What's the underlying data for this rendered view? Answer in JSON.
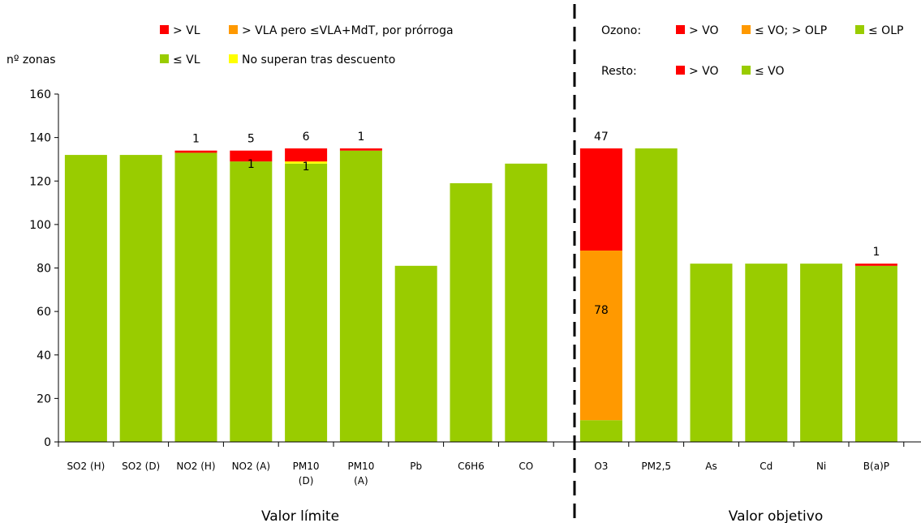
{
  "chart_data": {
    "type": "bar",
    "stacked": true,
    "ylabel": "nº zonas",
    "ylim": [
      0,
      160
    ],
    "yticks": [
      0,
      20,
      40,
      60,
      80,
      100,
      120,
      140,
      160
    ],
    "grid": false,
    "colors": {
      "red": "#ff0000",
      "orange": "#ff9900",
      "green": "#99cc00",
      "yellow": "#ffff00"
    },
    "groups": [
      {
        "label": "Valor límite",
        "categories": [
          "SO2 (H)",
          "SO2 (D)",
          "NO2 (H)",
          "NO2 (A)",
          "PM10 (D)",
          "PM10 (A)",
          "Pb",
          "C6H6",
          "CO"
        ],
        "category_lines": [
          [
            "SO2 (H)"
          ],
          [
            "SO2 (D)"
          ],
          [
            "NO2 (H)"
          ],
          [
            "NO2 (A)"
          ],
          [
            "PM10",
            "(D)"
          ],
          [
            "PM10",
            "(A)"
          ],
          [
            "Pb"
          ],
          [
            "C6H6"
          ],
          [
            "CO"
          ]
        ],
        "series": [
          {
            "name": "≤ VL",
            "color": "#99cc00",
            "values": [
              132,
              132,
              133,
              129,
              128,
              134,
              81,
              119,
              128
            ]
          },
          {
            "name": "No superan tras descuento",
            "color": "#ffff00",
            "values": [
              0,
              0,
              0,
              0,
              1,
              0,
              0,
              0,
              0
            ]
          },
          {
            "name": "> VLA pero ≤VLA+MdT, por prórroga",
            "color": "#ff9900",
            "values": [
              0,
              0,
              0,
              0,
              0,
              0,
              0,
              0,
              0
            ]
          },
          {
            "name": "> VL",
            "color": "#ff0000",
            "values": [
              0,
              0,
              1,
              5,
              6,
              1,
              0,
              0,
              0
            ]
          }
        ],
        "data_labels": [
          {
            "category": "NO2 (H)",
            "text": "1",
            "at": "top"
          },
          {
            "category": "NO2 (A)",
            "text": "5",
            "at": "top"
          },
          {
            "category": "NO2 (A)",
            "text": "1",
            "at": "inner"
          },
          {
            "category": "PM10 (D)",
            "text": "6",
            "at": "top"
          },
          {
            "category": "PM10 (D)",
            "text": "1",
            "at": "inner"
          },
          {
            "category": "PM10 (A)",
            "text": "1",
            "at": "top"
          }
        ]
      },
      {
        "label": "Valor objetivo",
        "categories": [
          "O3",
          "PM2,5",
          "As",
          "Cd",
          "Ni",
          "B(a)P"
        ],
        "category_lines": [
          [
            "O3"
          ],
          [
            "PM2,5"
          ],
          [
            "As"
          ],
          [
            "Cd"
          ],
          [
            "Ni"
          ],
          [
            "B(a)P"
          ]
        ],
        "series": [
          {
            "name": "≤ OLP / ≤ VO",
            "color": "#99cc00",
            "values": [
              10,
              135,
              82,
              82,
              82,
              81
            ]
          },
          {
            "name": "≤ VO; > OLP",
            "color": "#ff9900",
            "values": [
              78,
              0,
              0,
              0,
              0,
              0
            ]
          },
          {
            "name": "> VO",
            "color": "#ff0000",
            "values": [
              47,
              0,
              0,
              0,
              0,
              1
            ]
          }
        ],
        "data_labels": [
          {
            "category": "O3",
            "text": "47",
            "at": "top"
          },
          {
            "category": "O3",
            "text": "78",
            "at": "inner"
          },
          {
            "category": "B(a)P",
            "text": "1",
            "at": "top"
          }
        ]
      }
    ],
    "legend_left": [
      {
        "text": "> VL",
        "color": "#ff0000"
      },
      {
        "text": "> VLA pero ≤VLA+MdT, por prórroga",
        "color": "#ff9900"
      },
      {
        "text": "≤ VL",
        "color": "#99cc00"
      },
      {
        "text": "No superan tras descuento",
        "color": "#ffff00"
      }
    ],
    "legend_right": {
      "ozono_label": "Ozono:",
      "ozono": [
        {
          "text": "> VO",
          "color": "#ff0000"
        },
        {
          "text": "≤ VO; > OLP",
          "color": "#ff9900"
        },
        {
          "text": "≤ OLP",
          "color": "#99cc00"
        }
      ],
      "resto_label": "Resto:",
      "resto": [
        {
          "text": "> VO",
          "color": "#ff0000"
        },
        {
          "text": "≤ VO",
          "color": "#99cc00"
        }
      ]
    }
  }
}
